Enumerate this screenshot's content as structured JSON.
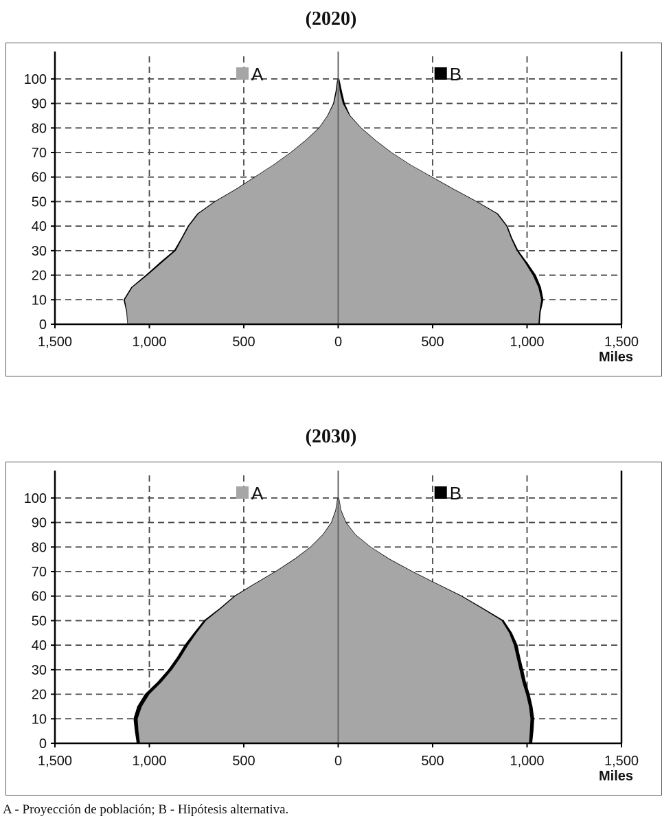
{
  "colors": {
    "A": "#a6a6a6",
    "B": "#000000",
    "grid": "#444444",
    "axis": "#000000"
  },
  "footnote": "A - Proyección de población; B - Hipótesis alternativa.",
  "chart_data": [
    {
      "type": "population-pyramid",
      "title": "(2020)",
      "xlabel": "Miles",
      "xlim": [
        -1500,
        1500
      ],
      "ylim": [
        0,
        105
      ],
      "x_ticks": [
        -1500,
        -1000,
        -500,
        0,
        500,
        1000,
        1500
      ],
      "x_tick_labels": [
        "1,500",
        "1,000",
        "500",
        "0",
        "500",
        "1,000",
        "1,500"
      ],
      "y_ticks": [
        0,
        10,
        20,
        30,
        40,
        50,
        60,
        70,
        80,
        90,
        100
      ],
      "y_tick_labels": [
        "0",
        "10",
        "20",
        "30",
        "40",
        "50",
        "60",
        "70",
        "80",
        "90",
        "100"
      ],
      "grid": true,
      "legend": [
        {
          "key": "A",
          "label": "A"
        },
        {
          "key": "B",
          "label": "B"
        }
      ],
      "ages": [
        0,
        5,
        10,
        15,
        20,
        25,
        30,
        35,
        40,
        45,
        50,
        55,
        60,
        65,
        70,
        75,
        80,
        85,
        90,
        95,
        100
      ],
      "series": [
        {
          "name": "A",
          "left": [
            1115,
            1118,
            1130,
            1090,
            1010,
            935,
            860,
            825,
            790,
            740,
            650,
            540,
            440,
            340,
            250,
            170,
            100,
            55,
            22,
            8,
            2
          ],
          "right": [
            1060,
            1065,
            1075,
            1060,
            1030,
            990,
            945,
            915,
            890,
            840,
            730,
            610,
            495,
            380,
            280,
            195,
            120,
            60,
            24,
            8,
            2
          ]
        },
        {
          "name": "B",
          "left": [
            1115,
            1120,
            1135,
            1095,
            1018,
            945,
            868,
            830,
            795,
            745,
            653,
            542,
            441,
            341,
            251,
            171,
            101,
            56,
            25,
            12,
            3
          ],
          "right": [
            1065,
            1070,
            1085,
            1072,
            1045,
            1000,
            952,
            920,
            895,
            845,
            733,
            612,
            496,
            381,
            281,
            196,
            121,
            62,
            33,
            18,
            4
          ]
        }
      ]
    },
    {
      "type": "population-pyramid",
      "title": "(2030)",
      "xlabel": "Miles",
      "xlim": [
        -1500,
        1500
      ],
      "ylim": [
        0,
        105
      ],
      "x_ticks": [
        -1500,
        -1000,
        -500,
        0,
        500,
        1000,
        1500
      ],
      "x_tick_labels": [
        "1,500",
        "1,000",
        "500",
        "0",
        "500",
        "1,000",
        "1,500"
      ],
      "y_ticks": [
        0,
        10,
        20,
        30,
        40,
        50,
        60,
        70,
        80,
        90,
        100
      ],
      "y_tick_labels": [
        "0",
        "10",
        "20",
        "30",
        "40",
        "50",
        "60",
        "70",
        "80",
        "90",
        "100"
      ],
      "grid": true,
      "legend": [
        {
          "key": "A",
          "label": "A"
        },
        {
          "key": "B",
          "label": "B"
        }
      ],
      "ages": [
        0,
        5,
        10,
        15,
        20,
        25,
        30,
        35,
        40,
        45,
        50,
        55,
        60,
        65,
        70,
        75,
        80,
        85,
        90,
        95,
        100
      ],
      "series": [
        {
          "name": "A",
          "left": [
            1050,
            1058,
            1062,
            1040,
            1000,
            935,
            880,
            835,
            795,
            750,
            700,
            620,
            545,
            440,
            330,
            230,
            145,
            80,
            35,
            12,
            3
          ],
          "right": [
            1010,
            1015,
            1018,
            1010,
            995,
            975,
            960,
            945,
            930,
            905,
            865,
            760,
            650,
            520,
            390,
            270,
            170,
            90,
            40,
            13,
            3
          ]
        },
        {
          "name": "B",
          "left": [
            1065,
            1075,
            1082,
            1062,
            1022,
            955,
            898,
            852,
            812,
            762,
            710,
            626,
            549,
            443,
            332,
            232,
            146,
            81,
            36,
            13,
            3
          ],
          "right": [
            1025,
            1032,
            1036,
            1027,
            1012,
            992,
            978,
            962,
            948,
            918,
            875,
            766,
            654,
            523,
            392,
            272,
            171,
            91,
            41,
            14,
            3
          ]
        }
      ]
    }
  ]
}
